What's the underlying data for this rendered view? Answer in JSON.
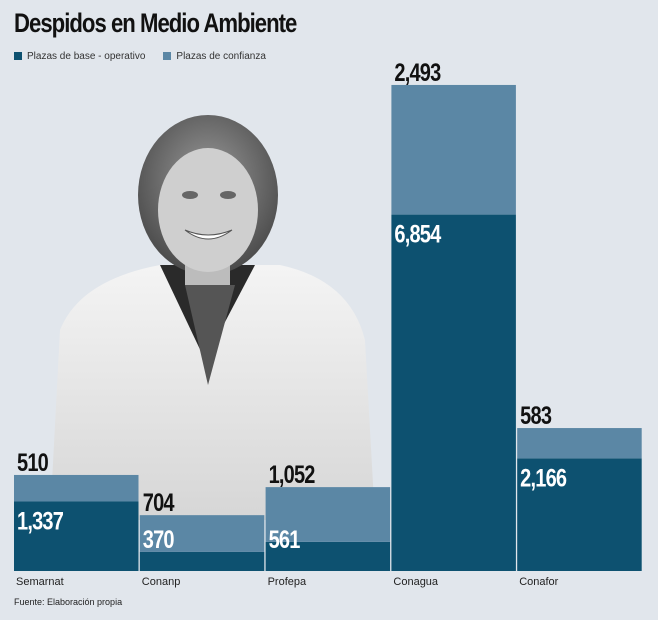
{
  "colors": {
    "base": "#0d5170",
    "confianza": "#5b87a5",
    "background": "#e1e6ec"
  },
  "source": "Fuente: Elaboración propia",
  "chart_data": {
    "type": "bar",
    "stacked": true,
    "title": "Despidos en Medio Ambiente",
    "categories": [
      "Semarnat",
      "Conanp",
      "Profepa",
      "Conagua",
      "Conafor"
    ],
    "series": [
      {
        "name": "Plazas de base - operativo",
        "values": [
          1337,
          370,
          561,
          6854,
          2166
        ],
        "labels": [
          "1,337",
          "370",
          "561",
          "6,854",
          "2,166"
        ]
      },
      {
        "name": "Plazas de confianza",
        "values": [
          510,
          704,
          1052,
          2493,
          583
        ],
        "labels": [
          "510",
          "704",
          "1,052",
          "2,493",
          "583"
        ]
      }
    ],
    "legend": "top-left",
    "grid": false,
    "ylim": [
      0,
      9500
    ]
  }
}
